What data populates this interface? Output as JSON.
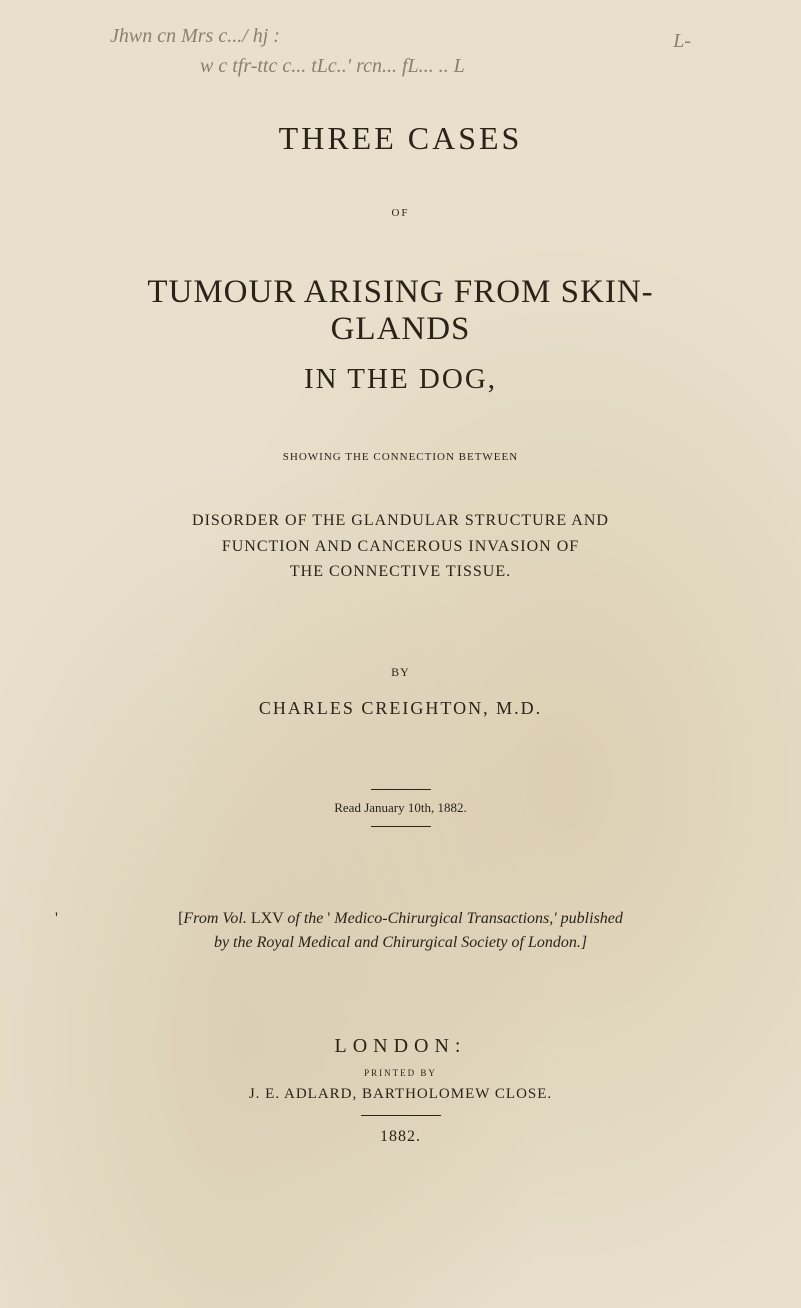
{
  "handwriting": {
    "line1": "Jhwn cn  Mrs c.../ hj :",
    "line2": "w c tfr-ttc  c... tLc..' rcn... fL... .. L",
    "right": "L-"
  },
  "mainTitle": "THREE CASES",
  "ofLabel": "OF",
  "bigTitle": "TUMOUR ARISING FROM SKIN-GLANDS",
  "subtitle": "IN THE DOG,",
  "showing": "SHOWING THE CONNECTION BETWEEN",
  "disorder": {
    "line1": "DISORDER OF THE GLANDULAR STRUCTURE AND",
    "line2": "FUNCTION AND CANCEROUS INVASION OF",
    "line3": "THE CONNECTIVE TISSUE."
  },
  "byLabel": "BY",
  "author": "CHARLES CREIGHTON, M.D.",
  "readDate": "Read January 10th, 1882.",
  "tickMark": "'",
  "fromLine1Prefix": "[From Vol. LXV of the ' ",
  "fromLine1Italic": "Medico-Chirurgical Transactions,' published",
  "fromLine2": "by the Royal Medical and Chirurgical Society of London.]",
  "london": "LONDON:",
  "printedBy": "PRINTED BY",
  "publisher": "J. E. ADLARD, BARTHOLOMEW CLOSE.",
  "year": "1882."
}
